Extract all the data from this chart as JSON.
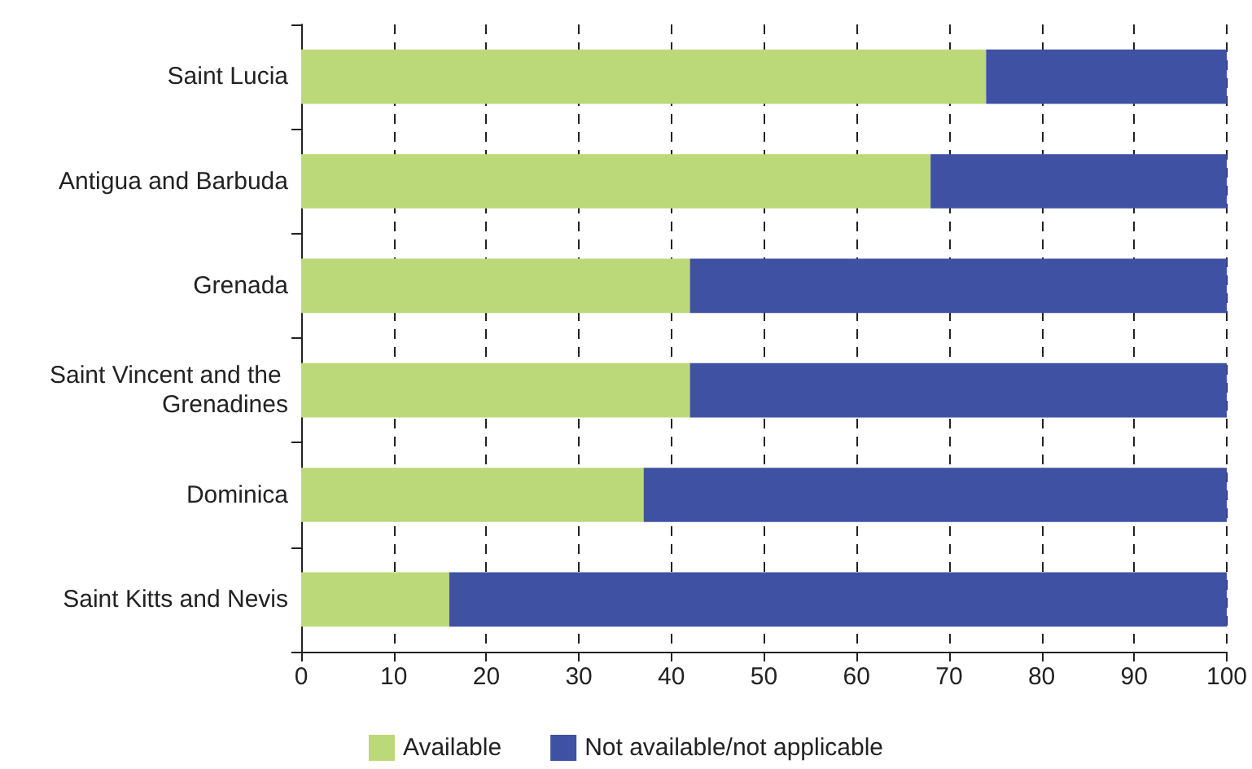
{
  "chart_data": {
    "type": "bar",
    "orientation": "horizontal",
    "stacked": true,
    "categories": [
      "Saint Lucia",
      "Antigua and Barbuda",
      "Grenada",
      "Saint Vincent and the Grenadines",
      "Dominica",
      "Saint Kitts and Nevis"
    ],
    "series": [
      {
        "name": "Available",
        "color": "#bcd97a",
        "values": [
          74,
          68,
          42,
          42,
          37,
          16
        ]
      },
      {
        "name": "Not available/not applicable",
        "color": "#3f51a3",
        "values": [
          26,
          32,
          58,
          58,
          63,
          84
        ]
      }
    ],
    "xlim": [
      0,
      100
    ],
    "xticks": [
      0,
      10,
      20,
      30,
      40,
      50,
      60,
      70,
      80,
      90,
      100
    ],
    "grid": "x",
    "legend": "bottom"
  }
}
